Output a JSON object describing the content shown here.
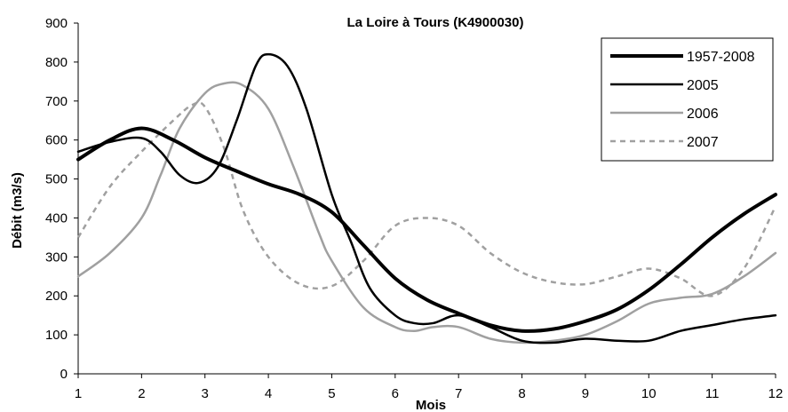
{
  "chart_data": {
    "type": "line",
    "title": "La Loire à Tours (K4900030)",
    "xlabel": "Mois",
    "ylabel": "Débit (m3/s)",
    "xlim": [
      1,
      12
    ],
    "ylim": [
      0,
      900
    ],
    "xticks": [
      1,
      2,
      3,
      4,
      5,
      6,
      7,
      8,
      9,
      10,
      11,
      12
    ],
    "yticks": [
      0,
      100,
      200,
      300,
      400,
      500,
      600,
      700,
      800,
      900
    ],
    "grid": false,
    "legend_position": "top-right",
    "series": [
      {
        "name": "1957-2008",
        "color": "#000000",
        "dash": "solid",
        "weight": "thick",
        "x": [
          1,
          1.5,
          2,
          2.5,
          3,
          3.5,
          4,
          4.5,
          5,
          5.5,
          6,
          6.5,
          7,
          7.5,
          8,
          8.5,
          9,
          9.5,
          10,
          10.5,
          11,
          11.5,
          12
        ],
        "y": [
          550,
          600,
          630,
          600,
          555,
          520,
          487,
          460,
          415,
          330,
          245,
          190,
          155,
          125,
          110,
          115,
          135,
          165,
          215,
          280,
          350,
          410,
          460
        ]
      },
      {
        "name": "2005",
        "color": "#000000",
        "dash": "solid",
        "weight": "normal",
        "x": [
          1,
          1.5,
          2,
          2.3,
          2.6,
          2.9,
          3.2,
          3.5,
          3.8,
          4,
          4.3,
          4.6,
          5,
          5.3,
          5.6,
          6,
          6.3,
          6.6,
          7,
          7.5,
          8,
          8.5,
          9,
          9.5,
          10,
          10.5,
          11,
          11.5,
          12
        ],
        "y": [
          570,
          595,
          605,
          570,
          510,
          490,
          530,
          650,
          790,
          820,
          790,
          680,
          460,
          340,
          220,
          150,
          130,
          130,
          150,
          120,
          85,
          80,
          90,
          85,
          85,
          110,
          125,
          140,
          150
        ]
      },
      {
        "name": "2006",
        "color": "#a0a0a0",
        "dash": "solid",
        "weight": "normal",
        "x": [
          1,
          1.5,
          2,
          2.3,
          2.6,
          3,
          3.3,
          3.6,
          4,
          4.4,
          4.8,
          5,
          5.5,
          6,
          6.3,
          6.6,
          7,
          7.5,
          8,
          8.5,
          9,
          9.5,
          10,
          10.5,
          11,
          11.5,
          12
        ],
        "y": [
          250,
          310,
          400,
          510,
          630,
          720,
          745,
          740,
          680,
          530,
          360,
          290,
          170,
          120,
          110,
          120,
          120,
          90,
          80,
          85,
          100,
          135,
          180,
          195,
          205,
          250,
          310
        ]
      },
      {
        "name": "2007",
        "color": "#a0a0a0",
        "dash": "dashed",
        "weight": "normal",
        "x": [
          1,
          1.5,
          2,
          2.5,
          2.8,
          3,
          3.3,
          3.6,
          4,
          4.5,
          5,
          5.5,
          6,
          6.5,
          7,
          7.5,
          8,
          8.5,
          9,
          9.5,
          10,
          10.5,
          11,
          11.5,
          12
        ],
        "y": [
          350,
          480,
          570,
          650,
          690,
          685,
          580,
          420,
          300,
          230,
          225,
          290,
          380,
          400,
          380,
          310,
          260,
          235,
          230,
          250,
          270,
          245,
          200,
          270,
          430
        ]
      }
    ]
  }
}
